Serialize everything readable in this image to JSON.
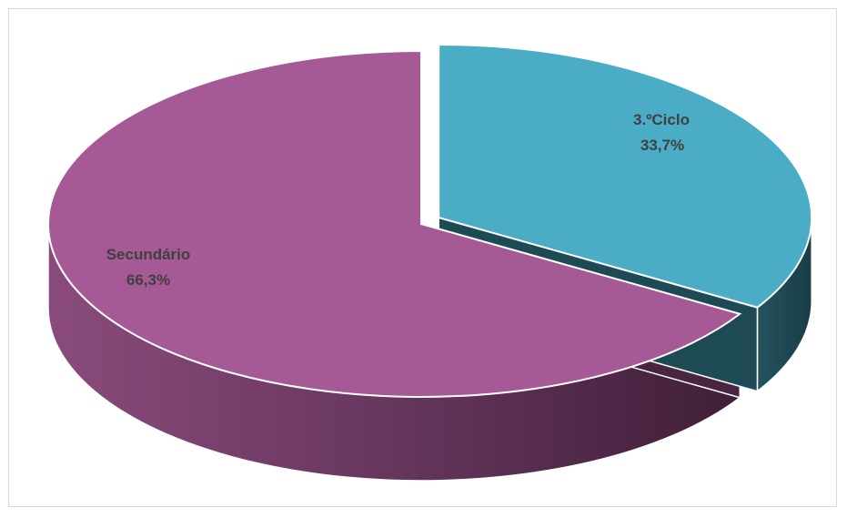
{
  "chart_data": {
    "type": "pie",
    "style": "3d-exploded",
    "slices": [
      {
        "label": "3.ºCiclo",
        "value": 33.7,
        "value_label": "33,7%",
        "color": "#4bacc6",
        "side_color": "#1e4a55"
      },
      {
        "label": "Secundário",
        "value": 66.3,
        "value_label": "66,3%",
        "color": "#a65a95",
        "side_color": "#4a2541"
      }
    ],
    "title": "",
    "legend": "none"
  }
}
